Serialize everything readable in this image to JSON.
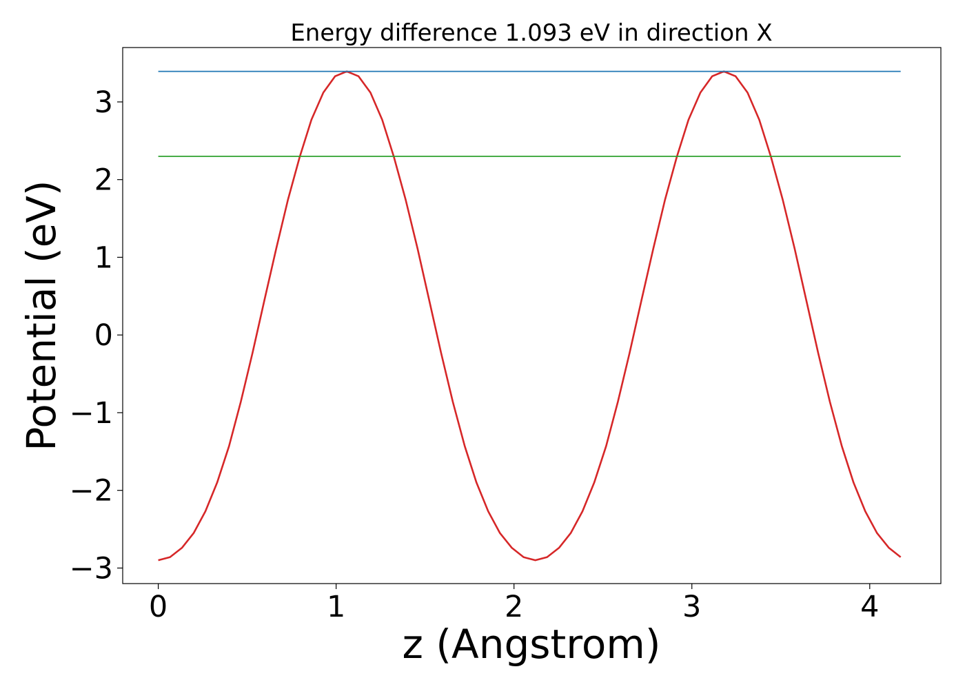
{
  "chart_data": {
    "type": "line",
    "title": "Energy difference 1.093 eV in direction X",
    "xlabel": "z (Angstrom)",
    "ylabel": "Potential (eV)",
    "xlim": [
      -0.2,
      4.4
    ],
    "ylim": [
      -3.2,
      3.7
    ],
    "xticks": [
      0,
      1,
      2,
      3,
      4
    ],
    "xtick_labels": [
      "0",
      "1",
      "2",
      "3",
      "4"
    ],
    "yticks": [
      -3,
      -2,
      -1,
      0,
      1,
      2,
      3
    ],
    "ytick_labels": [
      "−3",
      "−2",
      "−1",
      "0",
      "1",
      "2",
      "3"
    ],
    "grid": false,
    "series": [
      {
        "color": "#d62728",
        "x": [
          0.0,
          0.066,
          0.133,
          0.199,
          0.265,
          0.331,
          0.398,
          0.464,
          0.53,
          0.596,
          0.663,
          0.729,
          0.795,
          0.861,
          0.928,
          0.994,
          1.06,
          1.126,
          1.193,
          1.259,
          1.325,
          1.391,
          1.458,
          1.524,
          1.59,
          1.656,
          1.723,
          1.789,
          1.855,
          1.921,
          1.988,
          2.054,
          2.12,
          2.186,
          2.253,
          2.319,
          2.385,
          2.451,
          2.518,
          2.584,
          2.65,
          2.716,
          2.783,
          2.849,
          2.915,
          2.981,
          3.048,
          3.114,
          3.18,
          3.246,
          3.313,
          3.379,
          3.445,
          3.511,
          3.578,
          3.644,
          3.71,
          3.776,
          3.843,
          3.909,
          3.975,
          4.041,
          4.108,
          4.174
        ],
        "y": [
          -2.9,
          -2.86,
          -2.74,
          -2.55,
          -2.27,
          -1.9,
          -1.43,
          -0.86,
          -0.23,
          0.44,
          1.11,
          1.74,
          2.29,
          2.77,
          3.12,
          3.33,
          3.393,
          3.33,
          3.12,
          2.77,
          2.29,
          1.74,
          1.11,
          0.44,
          -0.23,
          -0.86,
          -1.43,
          -1.9,
          -2.27,
          -2.55,
          -2.74,
          -2.86,
          -2.9,
          -2.86,
          -2.74,
          -2.55,
          -2.27,
          -1.9,
          -1.43,
          -0.86,
          -0.23,
          0.44,
          1.11,
          1.74,
          2.29,
          2.77,
          3.12,
          3.33,
          3.393,
          3.33,
          3.12,
          2.77,
          2.29,
          1.74,
          1.11,
          0.44,
          -0.23,
          -0.86,
          -1.43,
          -1.9,
          -2.27,
          -2.55,
          -2.74,
          -2.86
        ]
      },
      {
        "color": "#1f77b4",
        "x": [
          0.0,
          4.174
        ],
        "y": [
          3.393,
          3.393
        ]
      },
      {
        "color": "#2ca02c",
        "x": [
          0.0,
          4.174
        ],
        "y": [
          2.3,
          2.3
        ]
      }
    ]
  }
}
